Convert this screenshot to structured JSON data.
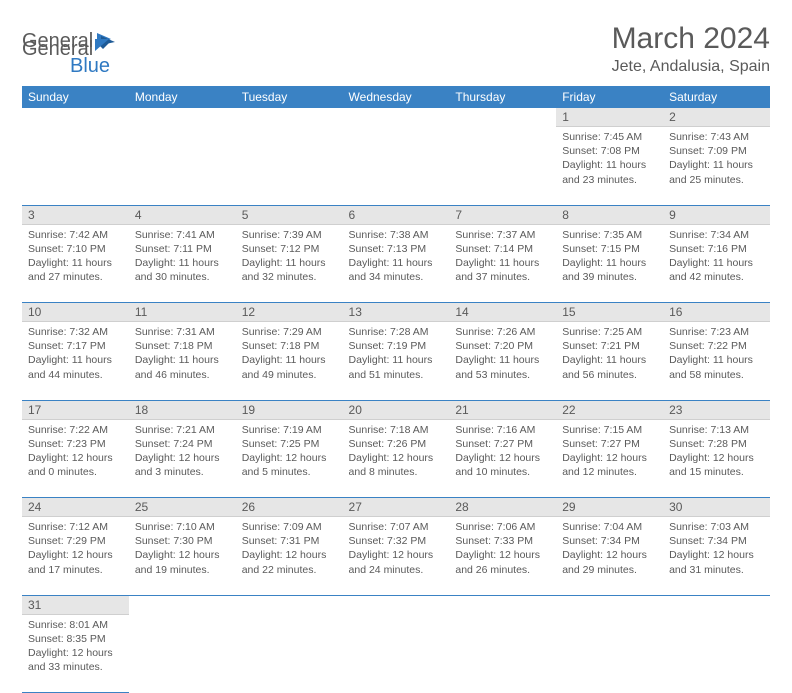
{
  "logo": {
    "text1": "General",
    "text2": "Blue"
  },
  "title": "March 2024",
  "location": "Jete, Andalusia, Spain",
  "colors": {
    "header_bg": "#3a82c4",
    "header_text": "#ffffff",
    "daynum_bg": "#e6e6e6",
    "row_border": "#3a82c4",
    "text": "#5a5a5a",
    "logo_blue": "#2f79c2"
  },
  "weekdays": [
    "Sunday",
    "Monday",
    "Tuesday",
    "Wednesday",
    "Thursday",
    "Friday",
    "Saturday"
  ],
  "weeks": [
    [
      null,
      null,
      null,
      null,
      null,
      {
        "n": "1",
        "sunrise": "7:45 AM",
        "sunset": "7:08 PM",
        "dayh": "11",
        "daym": "23"
      },
      {
        "n": "2",
        "sunrise": "7:43 AM",
        "sunset": "7:09 PM",
        "dayh": "11",
        "daym": "25"
      }
    ],
    [
      {
        "n": "3",
        "sunrise": "7:42 AM",
        "sunset": "7:10 PM",
        "dayh": "11",
        "daym": "27"
      },
      {
        "n": "4",
        "sunrise": "7:41 AM",
        "sunset": "7:11 PM",
        "dayh": "11",
        "daym": "30"
      },
      {
        "n": "5",
        "sunrise": "7:39 AM",
        "sunset": "7:12 PM",
        "dayh": "11",
        "daym": "32"
      },
      {
        "n": "6",
        "sunrise": "7:38 AM",
        "sunset": "7:13 PM",
        "dayh": "11",
        "daym": "34"
      },
      {
        "n": "7",
        "sunrise": "7:37 AM",
        "sunset": "7:14 PM",
        "dayh": "11",
        "daym": "37"
      },
      {
        "n": "8",
        "sunrise": "7:35 AM",
        "sunset": "7:15 PM",
        "dayh": "11",
        "daym": "39"
      },
      {
        "n": "9",
        "sunrise": "7:34 AM",
        "sunset": "7:16 PM",
        "dayh": "11",
        "daym": "42"
      }
    ],
    [
      {
        "n": "10",
        "sunrise": "7:32 AM",
        "sunset": "7:17 PM",
        "dayh": "11",
        "daym": "44"
      },
      {
        "n": "11",
        "sunrise": "7:31 AM",
        "sunset": "7:18 PM",
        "dayh": "11",
        "daym": "46"
      },
      {
        "n": "12",
        "sunrise": "7:29 AM",
        "sunset": "7:18 PM",
        "dayh": "11",
        "daym": "49"
      },
      {
        "n": "13",
        "sunrise": "7:28 AM",
        "sunset": "7:19 PM",
        "dayh": "11",
        "daym": "51"
      },
      {
        "n": "14",
        "sunrise": "7:26 AM",
        "sunset": "7:20 PM",
        "dayh": "11",
        "daym": "53"
      },
      {
        "n": "15",
        "sunrise": "7:25 AM",
        "sunset": "7:21 PM",
        "dayh": "11",
        "daym": "56"
      },
      {
        "n": "16",
        "sunrise": "7:23 AM",
        "sunset": "7:22 PM",
        "dayh": "11",
        "daym": "58"
      }
    ],
    [
      {
        "n": "17",
        "sunrise": "7:22 AM",
        "sunset": "7:23 PM",
        "dayh": "12",
        "daym": "0"
      },
      {
        "n": "18",
        "sunrise": "7:21 AM",
        "sunset": "7:24 PM",
        "dayh": "12",
        "daym": "3"
      },
      {
        "n": "19",
        "sunrise": "7:19 AM",
        "sunset": "7:25 PM",
        "dayh": "12",
        "daym": "5"
      },
      {
        "n": "20",
        "sunrise": "7:18 AM",
        "sunset": "7:26 PM",
        "dayh": "12",
        "daym": "8"
      },
      {
        "n": "21",
        "sunrise": "7:16 AM",
        "sunset": "7:27 PM",
        "dayh": "12",
        "daym": "10"
      },
      {
        "n": "22",
        "sunrise": "7:15 AM",
        "sunset": "7:27 PM",
        "dayh": "12",
        "daym": "12"
      },
      {
        "n": "23",
        "sunrise": "7:13 AM",
        "sunset": "7:28 PM",
        "dayh": "12",
        "daym": "15"
      }
    ],
    [
      {
        "n": "24",
        "sunrise": "7:12 AM",
        "sunset": "7:29 PM",
        "dayh": "12",
        "daym": "17"
      },
      {
        "n": "25",
        "sunrise": "7:10 AM",
        "sunset": "7:30 PM",
        "dayh": "12",
        "daym": "19"
      },
      {
        "n": "26",
        "sunrise": "7:09 AM",
        "sunset": "7:31 PM",
        "dayh": "12",
        "daym": "22"
      },
      {
        "n": "27",
        "sunrise": "7:07 AM",
        "sunset": "7:32 PM",
        "dayh": "12",
        "daym": "24"
      },
      {
        "n": "28",
        "sunrise": "7:06 AM",
        "sunset": "7:33 PM",
        "dayh": "12",
        "daym": "26"
      },
      {
        "n": "29",
        "sunrise": "7:04 AM",
        "sunset": "7:34 PM",
        "dayh": "12",
        "daym": "29"
      },
      {
        "n": "30",
        "sunrise": "7:03 AM",
        "sunset": "7:34 PM",
        "dayh": "12",
        "daym": "31"
      }
    ],
    [
      {
        "n": "31",
        "sunrise": "8:01 AM",
        "sunset": "8:35 PM",
        "dayh": "12",
        "daym": "33"
      },
      null,
      null,
      null,
      null,
      null,
      null
    ]
  ],
  "labels": {
    "sunrise": "Sunrise:",
    "sunset": "Sunset:",
    "daylight_prefix": "Daylight:",
    "hours_word": "hours",
    "and_word": "and",
    "minutes_word": "minutes."
  }
}
